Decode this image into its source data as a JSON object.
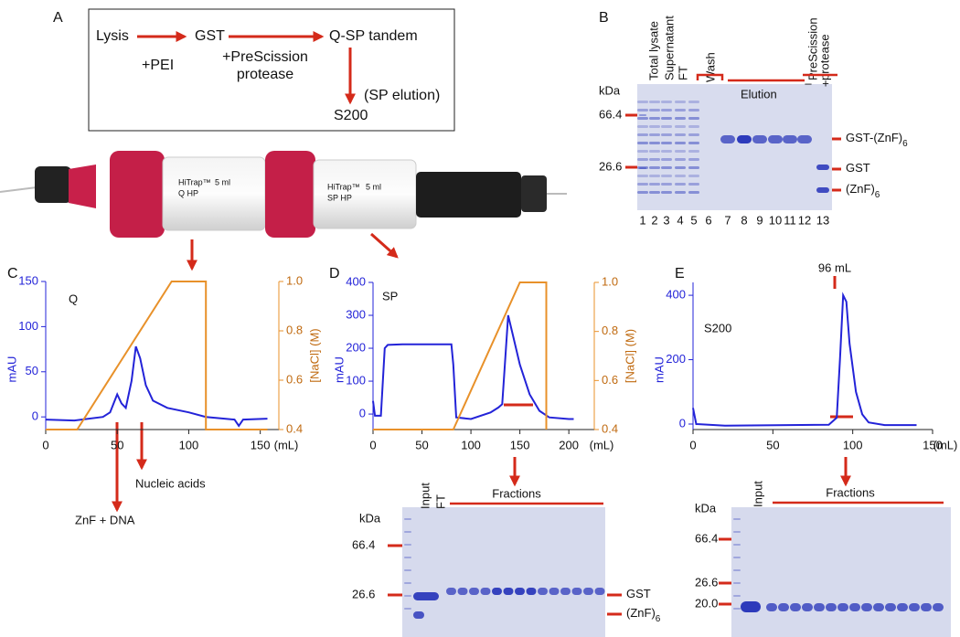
{
  "panel_labels": [
    "A",
    "B",
    "C",
    "D",
    "E"
  ],
  "flow": {
    "steps": [
      "Lysis",
      "GST",
      "Q-SP tandem",
      "S200"
    ],
    "conditions": [
      "+PEI",
      "+PreScission",
      "protease",
      "(SP elution)"
    ]
  },
  "columns": {
    "q_brand": "HiTrap™",
    "q_name": "Q HP",
    "q_volume": "5 ml",
    "sp_brand": "HiTrap™",
    "sp_name": "SP HP",
    "sp_volume": "5 ml"
  },
  "gel_b": {
    "kda": "kDa",
    "markers": [
      "66.4",
      "26.6"
    ],
    "lanes": [
      "1",
      "2",
      "3",
      "4",
      "5",
      "6",
      "7",
      "8",
      "9",
      "10",
      "11",
      "12",
      "13"
    ],
    "headers": [
      "Total lysate",
      "Supernatant",
      "FT",
      "Wash",
      "Elution",
      "PreScission",
      "protease",
      "–",
      "+"
    ],
    "bands": [
      {
        "text": "GST-(ZnF)",
        "sub": "6"
      },
      {
        "text": "GST"
      },
      {
        "text": "(ZnF)",
        "sub": "6"
      }
    ]
  },
  "annotations": [
    "Nucleic acids",
    "ZnF + DNA"
  ],
  "chart_data": [
    {
      "type": "line",
      "label": "Q",
      "x_label": "(mL)",
      "y_label": "mAU",
      "y2_label": "[NaCl] (M)",
      "xlim": [
        0,
        163
      ],
      "xticks": [
        0,
        50,
        100,
        150
      ],
      "ylim": [
        -14,
        150
      ],
      "yticks": [
        0,
        50,
        100,
        150
      ],
      "y2lim": [
        0.4,
        1.0
      ],
      "y2ticks": [
        0.4,
        0.6,
        0.8,
        {
          "value": 1.0,
          "label": "1.0"
        }
      ],
      "series": [
        {
          "color": "#2323d8",
          "x": [
            0,
            20,
            40,
            45,
            50,
            53,
            56,
            60,
            63,
            66,
            70,
            75,
            85,
            100,
            112,
            125,
            132,
            135,
            138,
            155
          ],
          "values": [
            -3,
            -4,
            0,
            5,
            25,
            15,
            10,
            40,
            78,
            65,
            35,
            18,
            10,
            5,
            0,
            -2,
            -3,
            -10,
            -3,
            -2
          ]
        },
        {
          "color": "#e8912a",
          "axis": "y2",
          "x": [
            0,
            22,
            88,
            112,
            112,
            155
          ],
          "values": [
            0.4,
            0.4,
            1.0,
            1.0,
            0.4,
            0.4
          ]
        }
      ]
    },
    {
      "type": "line",
      "label": "SP",
      "x_label": "(mL)",
      "y_label": "mAU",
      "y2_label": "[NaCl] (M)",
      "xlim": [
        0,
        226
      ],
      "xticks": [
        0,
        50,
        100,
        150,
        200
      ],
      "ylim": [
        -47,
        400
      ],
      "yticks": [
        0,
        100,
        200,
        300,
        400
      ],
      "y2lim": [
        0.4,
        1.0
      ],
      "y2ticks": [
        0.4,
        0.6,
        0.8,
        {
          "value": 1.0,
          "label": "1.0"
        }
      ],
      "series": [
        {
          "color": "#2323d8",
          "x": [
            0,
            2,
            8,
            12,
            15,
            30,
            80,
            82,
            85,
            100,
            120,
            128,
            132,
            138,
            142,
            150,
            160,
            170,
            180,
            200,
            205
          ],
          "values": [
            40,
            -5,
            -5,
            200,
            210,
            212,
            212,
            150,
            -10,
            -15,
            5,
            20,
            30,
            300,
            250,
            150,
            60,
            10,
            -10,
            -15,
            -15
          ]
        },
        {
          "color": "#e8912a",
          "axis": "y2",
          "x": [
            0,
            82,
            150,
            177,
            177
          ],
          "values": [
            0.4,
            0.4,
            1.0,
            1.0,
            0.4
          ]
        }
      ]
    },
    {
      "type": "line",
      "label": "S200",
      "x_label": "(mL)",
      "y_label": "mAU",
      "annotation": "96 mL",
      "xlim": [
        0,
        150
      ],
      "xticks": [
        0,
        50,
        100,
        150
      ],
      "ylim": [
        -17,
        440
      ],
      "yticks": [
        0,
        200,
        400
      ],
      "series": [
        {
          "color": "#2323d8",
          "x": [
            0,
            2,
            20,
            60,
            85,
            90,
            92,
            94,
            96,
            98,
            102,
            106,
            110,
            120,
            140
          ],
          "values": [
            50,
            0,
            -5,
            -3,
            -2,
            20,
            200,
            400,
            380,
            250,
            100,
            30,
            5,
            -3,
            -3
          ]
        }
      ]
    }
  ],
  "gel_d": {
    "kda": "kDa",
    "markers": [
      "66.4",
      "26.6"
    ],
    "headers": [
      "Input",
      "FT",
      "Fractions"
    ],
    "bands": [
      {
        "text": "GST"
      },
      {
        "text": "(ZnF)",
        "sub": "6"
      }
    ]
  },
  "gel_e": {
    "kda": "kDa",
    "markers": [
      "66.4",
      "26.6",
      "20.0"
    ],
    "headers": [
      "Input",
      "Fractions"
    ]
  }
}
